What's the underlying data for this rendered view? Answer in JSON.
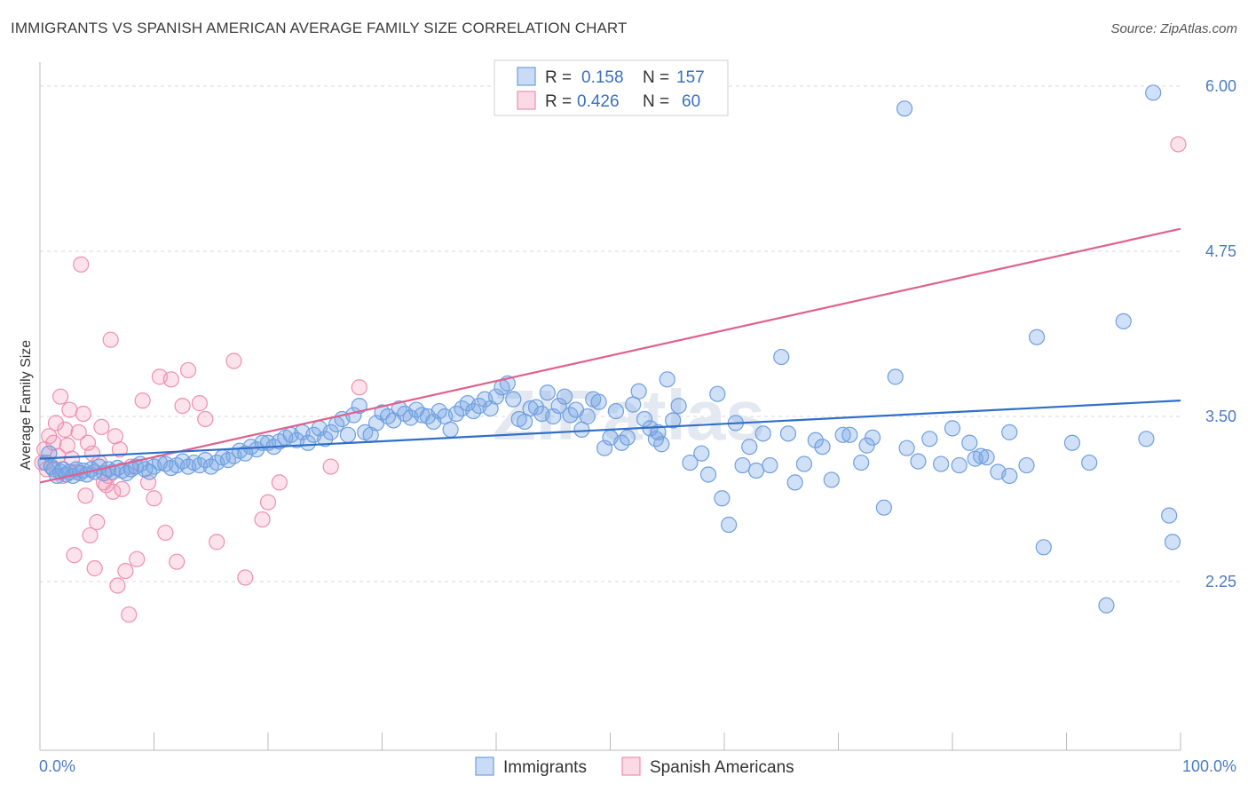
{
  "title": "IMMIGRANTS VS SPANISH AMERICAN AVERAGE FAMILY SIZE CORRELATION CHART",
  "source": "Source: ZipAtlas.com",
  "watermark": "ZIPatlas",
  "colors": {
    "immigrants_fill": "rgba(120,165,230,0.35)",
    "immigrants_stroke": "#6f9fe0",
    "immigrants_line": "#2f6fc9",
    "spanish_fill": "rgba(245,160,190,0.30)",
    "spanish_stroke": "#ee8fb0",
    "spanish_line": "#e0608c",
    "tick_text": "#4b7bc4",
    "grid": "#d8d8d8"
  },
  "legend": {
    "r_label": "R =",
    "n_label": "N =",
    "rows": [
      {
        "r": "0.158",
        "n": "157"
      },
      {
        "r": "0.426",
        "n": "60"
      }
    ]
  },
  "chart_data": {
    "type": "scatter",
    "title": "IMMIGRANTS VS SPANISH AMERICAN AVERAGE FAMILY SIZE CORRELATION CHART",
    "xlabel": "",
    "ylabel": "Average Family Size",
    "xlim": [
      0,
      100
    ],
    "ylim": [
      1.0,
      6.25
    ],
    "x_tick_labels": [
      "0.0%",
      "100.0%"
    ],
    "y_ticks": [
      2.25,
      3.5,
      4.75,
      6.0
    ],
    "y_tick_labels": [
      "2.25",
      "3.50",
      "4.75",
      "6.00"
    ],
    "grid": true,
    "legend_position": "top-center",
    "series": [
      {
        "name": "Immigrants",
        "trend": {
          "x": [
            0,
            100
          ],
          "y": [
            3.18,
            3.62
          ]
        },
        "points": [
          [
            0.5,
            3.15
          ],
          [
            0.8,
            3.22
          ],
          [
            1.0,
            3.12
          ],
          [
            1.2,
            3.1
          ],
          [
            1.5,
            3.05
          ],
          [
            1.8,
            3.08
          ],
          [
            2.0,
            3.1
          ],
          [
            2.3,
            3.06
          ],
          [
            2.6,
            3.08
          ],
          [
            2.9,
            3.05
          ],
          [
            3.2,
            3.1
          ],
          [
            3.5,
            3.07
          ],
          [
            3.8,
            3.09
          ],
          [
            4.1,
            3.06
          ],
          [
            4.5,
            3.1
          ],
          [
            4.8,
            3.08
          ],
          [
            5.2,
            3.12
          ],
          [
            5.6,
            3.07
          ],
          [
            6.0,
            3.1
          ],
          [
            6.4,
            3.08
          ],
          [
            6.8,
            3.11
          ],
          [
            7.2,
            3.09
          ],
          [
            7.6,
            3.07
          ],
          [
            8.0,
            3.1
          ],
          [
            8.4,
            3.12
          ],
          [
            8.8,
            3.14
          ],
          [
            9.2,
            3.1
          ],
          [
            9.6,
            3.08
          ],
          [
            10.0,
            3.12
          ],
          [
            10.5,
            3.15
          ],
          [
            11.0,
            3.14
          ],
          [
            11.5,
            3.11
          ],
          [
            12.0,
            3.13
          ],
          [
            12.5,
            3.16
          ],
          [
            13.0,
            3.12
          ],
          [
            13.5,
            3.15
          ],
          [
            14.0,
            3.13
          ],
          [
            14.5,
            3.17
          ],
          [
            15.0,
            3.12
          ],
          [
            15.5,
            3.15
          ],
          [
            16.0,
            3.19
          ],
          [
            16.5,
            3.17
          ],
          [
            17.0,
            3.2
          ],
          [
            17.5,
            3.24
          ],
          [
            18.0,
            3.22
          ],
          [
            18.5,
            3.27
          ],
          [
            19.0,
            3.25
          ],
          [
            19.5,
            3.3
          ],
          [
            20.0,
            3.3
          ],
          [
            20.5,
            3.27
          ],
          [
            21.0,
            3.31
          ],
          [
            21.5,
            3.34
          ],
          [
            22.0,
            3.36
          ],
          [
            22.5,
            3.32
          ],
          [
            23.0,
            3.38
          ],
          [
            23.5,
            3.3
          ],
          [
            24.0,
            3.36
          ],
          [
            24.5,
            3.41
          ],
          [
            25.0,
            3.33
          ],
          [
            25.5,
            3.38
          ],
          [
            26.0,
            3.44
          ],
          [
            26.5,
            3.48
          ],
          [
            27.0,
            3.36
          ],
          [
            27.5,
            3.51
          ],
          [
            28.0,
            3.58
          ],
          [
            28.5,
            3.38
          ],
          [
            29.0,
            3.36
          ],
          [
            29.5,
            3.45
          ],
          [
            30.0,
            3.53
          ],
          [
            30.5,
            3.5
          ],
          [
            31.0,
            3.47
          ],
          [
            31.5,
            3.56
          ],
          [
            32.0,
            3.52
          ],
          [
            32.5,
            3.49
          ],
          [
            33.0,
            3.55
          ],
          [
            33.5,
            3.51
          ],
          [
            34.0,
            3.5
          ],
          [
            34.5,
            3.46
          ],
          [
            35.0,
            3.54
          ],
          [
            35.5,
            3.5
          ],
          [
            36.0,
            3.4
          ],
          [
            36.5,
            3.52
          ],
          [
            37.0,
            3.56
          ],
          [
            37.5,
            3.6
          ],
          [
            38.0,
            3.54
          ],
          [
            38.5,
            3.58
          ],
          [
            39.0,
            3.63
          ],
          [
            39.5,
            3.56
          ],
          [
            40.0,
            3.65
          ],
          [
            40.5,
            3.72
          ],
          [
            41.0,
            3.75
          ],
          [
            41.5,
            3.63
          ],
          [
            42.0,
            3.48
          ],
          [
            42.5,
            3.46
          ],
          [
            43.0,
            3.56
          ],
          [
            43.5,
            3.57
          ],
          [
            44.0,
            3.52
          ],
          [
            44.5,
            3.68
          ],
          [
            45.0,
            3.5
          ],
          [
            45.5,
            3.58
          ],
          [
            46.0,
            3.65
          ],
          [
            46.5,
            3.51
          ],
          [
            47.0,
            3.55
          ],
          [
            47.5,
            3.4
          ],
          [
            48.0,
            3.5
          ],
          [
            48.5,
            3.63
          ],
          [
            49.0,
            3.61
          ],
          [
            49.5,
            3.26
          ],
          [
            50.0,
            3.34
          ],
          [
            50.5,
            3.54
          ],
          [
            51.0,
            3.3
          ],
          [
            51.5,
            3.34
          ],
          [
            52.0,
            3.59
          ],
          [
            52.5,
            3.69
          ],
          [
            53.0,
            3.48
          ],
          [
            53.5,
            3.41
          ],
          [
            54.0,
            3.33
          ],
          [
            54.5,
            3.29
          ],
          [
            55.0,
            3.78
          ],
          [
            55.5,
            3.47
          ],
          [
            56.0,
            3.58
          ],
          [
            57.0,
            3.15
          ],
          [
            58.0,
            3.22
          ],
          [
            58.6,
            3.06
          ],
          [
            59.4,
            3.67
          ],
          [
            59.8,
            2.88
          ],
          [
            60.4,
            2.68
          ],
          [
            61.0,
            3.45
          ],
          [
            61.6,
            3.13
          ],
          [
            62.2,
            3.27
          ],
          [
            62.8,
            3.09
          ],
          [
            63.4,
            3.37
          ],
          [
            64.0,
            3.13
          ],
          [
            65.0,
            3.95
          ],
          [
            65.6,
            3.37
          ],
          [
            66.2,
            3.0
          ],
          [
            67.0,
            3.14
          ],
          [
            68.0,
            3.32
          ],
          [
            68.6,
            3.27
          ],
          [
            69.4,
            3.02
          ],
          [
            70.4,
            3.36
          ],
          [
            71.0,
            3.36
          ],
          [
            72.0,
            3.15
          ],
          [
            73.0,
            3.34
          ],
          [
            74.0,
            2.81
          ],
          [
            75.0,
            3.8
          ],
          [
            76.0,
            3.26
          ],
          [
            77.0,
            3.16
          ],
          [
            78.0,
            3.33
          ],
          [
            79.0,
            3.14
          ],
          [
            80.0,
            3.41
          ],
          [
            80.6,
            3.13
          ],
          [
            81.5,
            3.3
          ],
          [
            82.0,
            3.18
          ],
          [
            82.5,
            3.2
          ],
          [
            83.0,
            3.19
          ],
          [
            84.0,
            3.08
          ],
          [
            85.0,
            3.38
          ],
          [
            86.5,
            3.13
          ],
          [
            88.0,
            2.51
          ],
          [
            87.4,
            4.1
          ],
          [
            90.5,
            3.3
          ],
          [
            92.0,
            3.15
          ],
          [
            93.5,
            2.07
          ],
          [
            95.0,
            4.22
          ],
          [
            97.0,
            3.33
          ],
          [
            99.0,
            2.75
          ],
          [
            99.3,
            2.55
          ],
          [
            97.6,
            5.95
          ],
          [
            75.8,
            5.83
          ],
          [
            85.0,
            3.05
          ],
          [
            72.5,
            3.28
          ],
          [
            54.2,
            3.38
          ]
        ]
      },
      {
        "name": "Spanish Americans",
        "trend": {
          "x": [
            0,
            100
          ],
          "y": [
            3.0,
            4.92
          ]
        },
        "points": [
          [
            0.2,
            3.15
          ],
          [
            0.4,
            3.25
          ],
          [
            0.6,
            3.1
          ],
          [
            0.8,
            3.35
          ],
          [
            1.0,
            3.12
          ],
          [
            1.2,
            3.3
          ],
          [
            1.4,
            3.45
          ],
          [
            1.6,
            3.2
          ],
          [
            1.8,
            3.65
          ],
          [
            2.0,
            3.05
          ],
          [
            2.2,
            3.4
          ],
          [
            2.4,
            3.28
          ],
          [
            2.6,
            3.55
          ],
          [
            2.8,
            3.18
          ],
          [
            3.0,
            2.45
          ],
          [
            3.2,
            3.08
          ],
          [
            3.4,
            3.38
          ],
          [
            3.6,
            4.65
          ],
          [
            3.8,
            3.52
          ],
          [
            4.0,
            2.9
          ],
          [
            4.2,
            3.3
          ],
          [
            4.4,
            2.6
          ],
          [
            4.6,
            3.22
          ],
          [
            4.8,
            2.35
          ],
          [
            5.0,
            2.7
          ],
          [
            5.2,
            3.15
          ],
          [
            5.4,
            3.42
          ],
          [
            5.6,
            3.0
          ],
          [
            5.8,
            2.98
          ],
          [
            6.0,
            3.05
          ],
          [
            6.2,
            4.08
          ],
          [
            6.4,
            2.93
          ],
          [
            6.6,
            3.35
          ],
          [
            6.8,
            2.22
          ],
          [
            7.0,
            3.25
          ],
          [
            7.2,
            2.95
          ],
          [
            7.5,
            2.33
          ],
          [
            7.8,
            2.0
          ],
          [
            8.0,
            3.12
          ],
          [
            8.5,
            2.42
          ],
          [
            9.0,
            3.62
          ],
          [
            9.5,
            3.0
          ],
          [
            10.0,
            2.88
          ],
          [
            10.5,
            3.8
          ],
          [
            11.0,
            2.62
          ],
          [
            11.5,
            3.78
          ],
          [
            12.0,
            2.4
          ],
          [
            12.5,
            3.58
          ],
          [
            13.0,
            3.85
          ],
          [
            14.0,
            3.6
          ],
          [
            15.5,
            2.55
          ],
          [
            17.0,
            3.92
          ],
          [
            18.0,
            2.28
          ],
          [
            19.5,
            2.72
          ],
          [
            20.0,
            2.85
          ],
          [
            21.0,
            3.0
          ],
          [
            25.5,
            3.12
          ],
          [
            28.0,
            3.72
          ],
          [
            14.5,
            3.48
          ],
          [
            99.8,
            5.56
          ]
        ]
      }
    ]
  },
  "bottom_legend": [
    {
      "label": "Immigrants"
    },
    {
      "label": "Spanish Americans"
    }
  ]
}
